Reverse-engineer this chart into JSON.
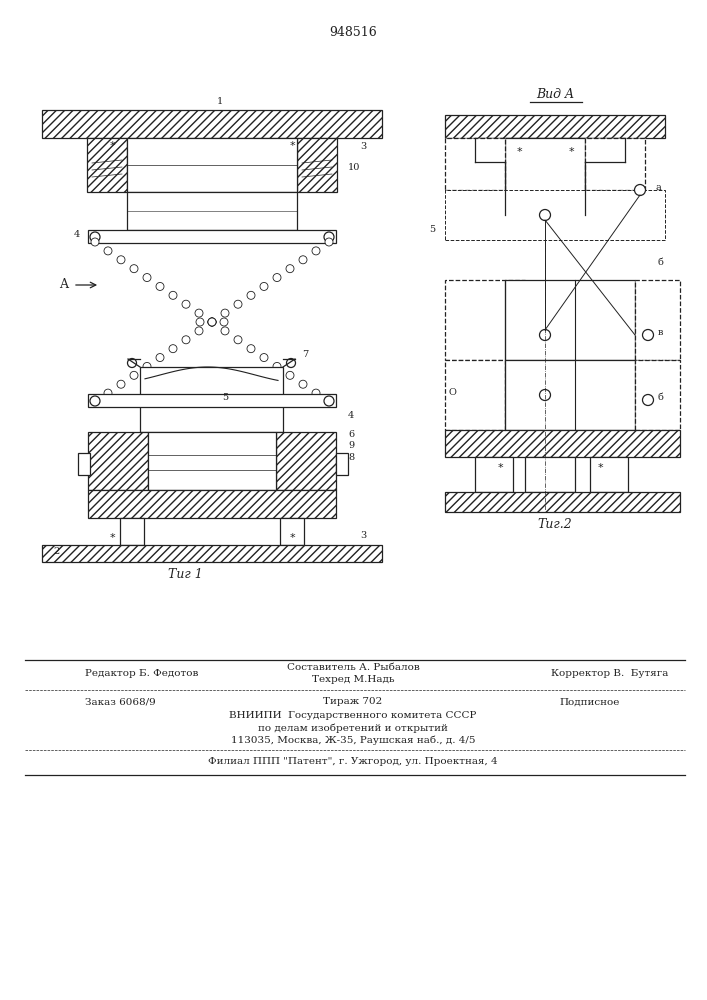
{
  "patent_number": "948516",
  "fig1_label": "Τиг 1",
  "fig2_label": "Τиг.2",
  "vid_a_label": "Вид A",
  "line_color": "#222222",
  "footer_editor": "Редактор Б. Федотов",
  "footer_composer": "Составитель А. Рыбалов",
  "footer_techred": "Техред М.Надь",
  "footer_corrector": "Корректор В.  Бутяга",
  "footer_order": "Заказ 6068/9",
  "footer_tirazh": "Тираж 702",
  "footer_podpisnoe": "Подписное",
  "footer_vniipи": "ВНИИПИ  Государственного комитета СССР",
  "footer_po_delam": "по делам изобретений и открытий",
  "footer_address": "113035, Москва, Ж-35, Раушская наб., д. 4/5",
  "footer_filial": "Филиал ППП \"Патент\", г. Ужгород, ул. Проектная, 4"
}
